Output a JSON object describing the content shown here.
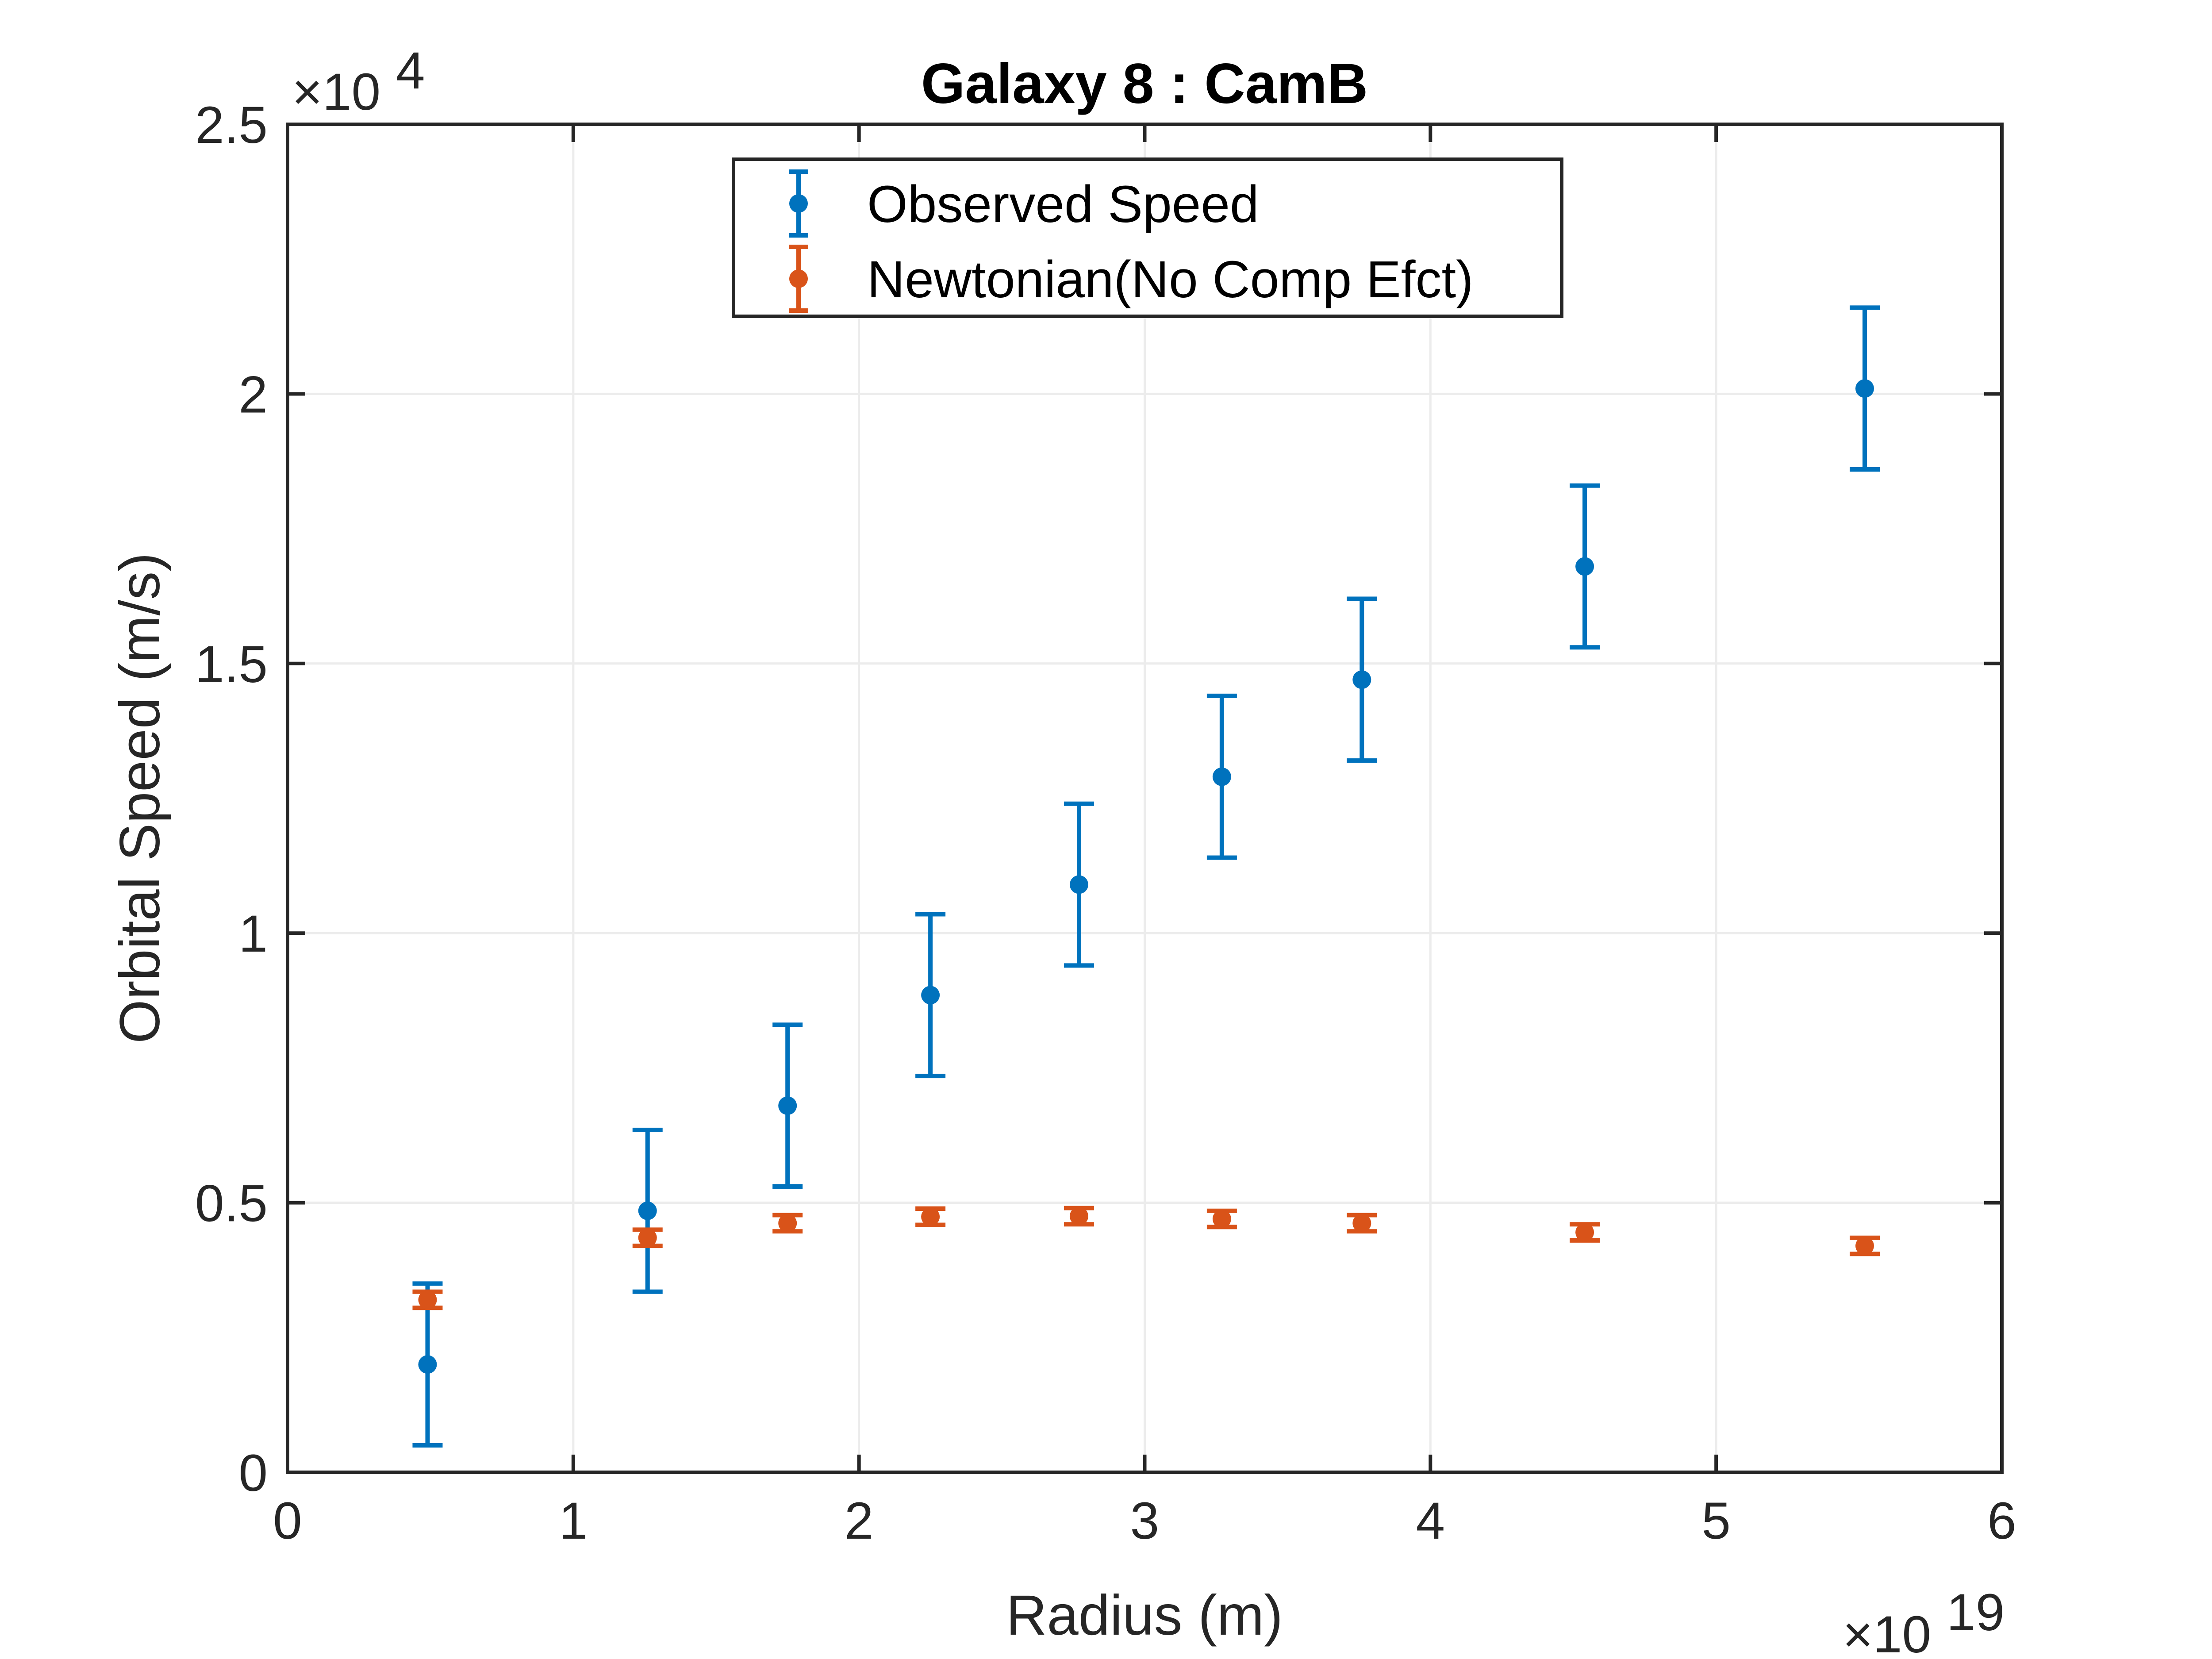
{
  "chart_data": {
    "type": "scatter",
    "title": "Galaxy 8 : CamB",
    "xlabel": "Radius (m)",
    "ylabel": "Orbital Speed (m/s)",
    "x_exponent_label": "×10",
    "x_exponent_power": "19",
    "y_exponent_label": "×10",
    "y_exponent_power": "4",
    "x_scale": 1e+19,
    "y_scale": 10000,
    "xlim": [
      0,
      6
    ],
    "ylim": [
      0,
      2.5
    ],
    "x_ticks": [
      0,
      1,
      2,
      3,
      4,
      5,
      6
    ],
    "x_tick_labels": [
      "0",
      "1",
      "2",
      "3",
      "4",
      "5",
      "6"
    ],
    "y_ticks": [
      0,
      0.5,
      1,
      1.5,
      2,
      2.5
    ],
    "y_tick_labels": [
      "0",
      "0.5",
      "1",
      "1.5",
      "2",
      "2.5"
    ],
    "grid": true,
    "legend_position": "top-center",
    "series": [
      {
        "name": "Observed Speed",
        "color": "#0072BD",
        "x": [
          0.49,
          1.26,
          1.75,
          2.25,
          2.77,
          3.27,
          3.76,
          4.54,
          5.52
        ],
        "y": [
          0.2,
          0.485,
          0.68,
          0.885,
          1.09,
          1.29,
          1.47,
          1.68,
          2.01
        ],
        "err_low": [
          0.15,
          0.15,
          0.15,
          0.15,
          0.15,
          0.15,
          0.15,
          0.15,
          0.15
        ],
        "err_high": [
          0.15,
          0.15,
          0.15,
          0.15,
          0.15,
          0.15,
          0.15,
          0.15,
          0.15
        ]
      },
      {
        "name": "Newtonian(No Comp Efct)",
        "color": "#D95319",
        "x": [
          0.49,
          1.26,
          1.75,
          2.25,
          2.77,
          3.27,
          3.76,
          4.54,
          5.52
        ],
        "y": [
          0.32,
          0.435,
          0.462,
          0.474,
          0.475,
          0.47,
          0.462,
          0.445,
          0.42
        ],
        "err_low": [
          0.015,
          0.015,
          0.015,
          0.015,
          0.015,
          0.015,
          0.015,
          0.015,
          0.015
        ],
        "err_high": [
          0.015,
          0.015,
          0.015,
          0.015,
          0.015,
          0.015,
          0.015,
          0.015,
          0.015
        ]
      }
    ]
  }
}
